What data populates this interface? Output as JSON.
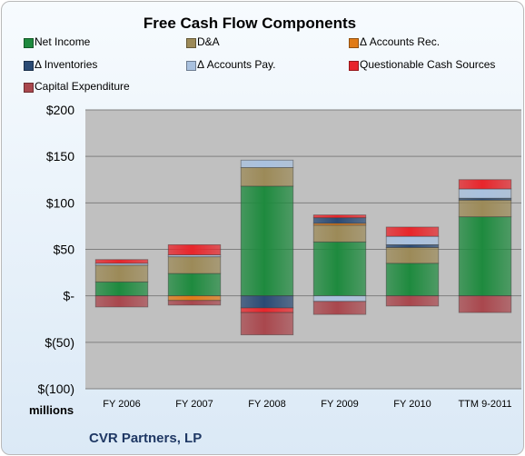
{
  "chart_data": {
    "type": "bar",
    "stacked": true,
    "title": "Free Cash Flow Components",
    "units_label": "millions",
    "footer": "CVR Partners, LP",
    "categories": [
      "FY 2006",
      "FY 2007",
      "FY 2008",
      "FY 2009",
      "FY 2010",
      "TTM 9-2011"
    ],
    "ylim": [
      -100,
      200
    ],
    "yticks": [
      200,
      150,
      100,
      50,
      0,
      -50,
      -100
    ],
    "ytick_labels": [
      "$200",
      "$150",
      "$100",
      "$50",
      "$-",
      "$(50)",
      "$(100)"
    ],
    "grid": true,
    "legend_position": "top",
    "series": [
      {
        "name": "Net Income",
        "color": "#1e8a3e",
        "values": [
          15,
          24,
          118,
          58,
          35,
          85
        ]
      },
      {
        "name": "D&A",
        "color": "#9c8a58",
        "values": [
          18,
          18,
          20,
          18,
          17,
          18
        ]
      },
      {
        "name": "Δ Accounts Rec.",
        "color": "#e07b17",
        "values": [
          0,
          -5,
          0,
          2,
          0,
          0
        ]
      },
      {
        "name": "Δ Inventories",
        "color": "#2a4a74",
        "values": [
          0,
          0,
          -13,
          6,
          3,
          2
        ]
      },
      {
        "name": "Δ Accounts Pay.",
        "color": "#a9c1df",
        "values": [
          2,
          2,
          8,
          -6,
          9,
          10
        ]
      },
      {
        "name": "Questionable Cash Sources",
        "color": "#e8252b",
        "values": [
          4,
          11,
          -5,
          3,
          10,
          10
        ]
      },
      {
        "name": "Capital Expenditure",
        "color": "#a9474d",
        "values": [
          -12,
          -5,
          -24,
          -14,
          -11,
          -18
        ]
      }
    ]
  }
}
